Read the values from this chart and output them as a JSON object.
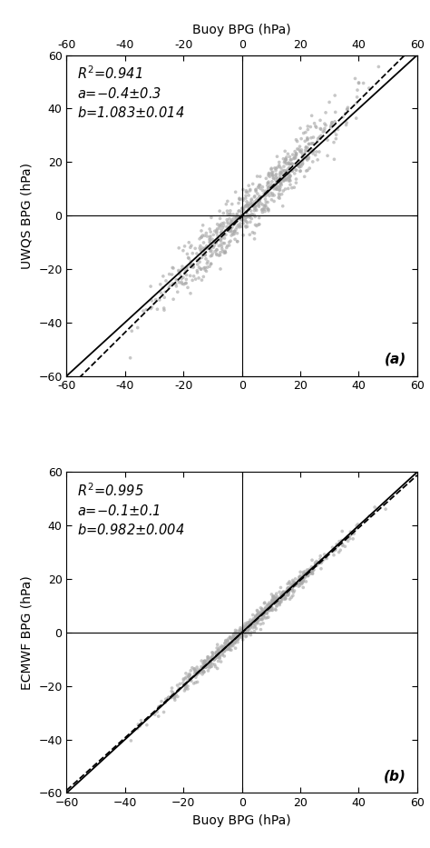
{
  "panel_a": {
    "ylabel": "UWQS BPG (hPa)",
    "stats_text": "$R^2$=0.941\n$a$=−0.4±0.3\n$b$=1.083±0.014",
    "reg_a": -0.4,
    "reg_b": 1.083,
    "label": "(a)",
    "noise_std": 4.5,
    "buoy_std": 16,
    "n_points": 700,
    "seed": 42
  },
  "panel_b": {
    "ylabel": "ECMWF BPG (hPa)",
    "stats_text": "$R^2$=0.995\n$a$=−0.1±0.1\n$b$=0.982±0.004",
    "reg_a": -0.1,
    "reg_b": 0.982,
    "label": "(b)",
    "noise_std": 1.5,
    "buoy_std": 16,
    "n_points": 700,
    "seed": 77
  },
  "top_xlabel": "Buoy BPG (hPa)",
  "bottom_xlabel": "Buoy BPG (hPa)",
  "xlim": [
    -60,
    60
  ],
  "ylim": [
    -60,
    60
  ],
  "xticks": [
    -60,
    -40,
    -20,
    0,
    20,
    40,
    60
  ],
  "yticks": [
    -60,
    -40,
    -20,
    0,
    20,
    40,
    60
  ],
  "scatter_color": "#aaaaaa",
  "scatter_alpha": 0.65,
  "scatter_size": 7,
  "contour_color": "#444444",
  "kde_bw_a": 0.08,
  "kde_bw_b": 0.06
}
